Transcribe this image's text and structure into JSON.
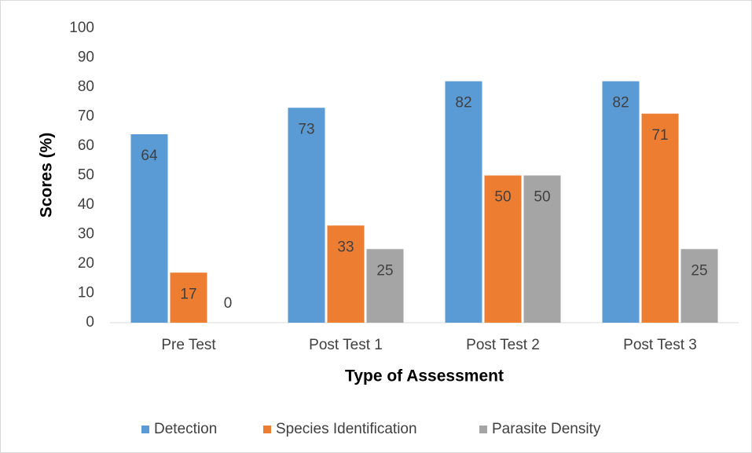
{
  "chart_data": {
    "type": "bar",
    "xlabel": "Type of Assessment",
    "ylabel": "Scores (%)",
    "categories": [
      "Pre Test",
      "Post Test 1",
      "Post Test 2",
      "Post Test 3"
    ],
    "series": [
      {
        "name": "Detection",
        "color": "#5b9bd5",
        "values": [
          64,
          73,
          82,
          82
        ]
      },
      {
        "name": "Species Identification",
        "color": "#ed7d31",
        "values": [
          17,
          33,
          50,
          71
        ]
      },
      {
        "name": "Parasite Density",
        "color": "#a5a5a5",
        "values": [
          0,
          25,
          50,
          25
        ]
      }
    ],
    "ylim": [
      0,
      100
    ],
    "yticks": [
      0,
      10,
      20,
      30,
      40,
      50,
      60,
      70,
      80,
      90,
      100
    ],
    "grid": false,
    "data_labels": true,
    "legend": "bottom"
  }
}
